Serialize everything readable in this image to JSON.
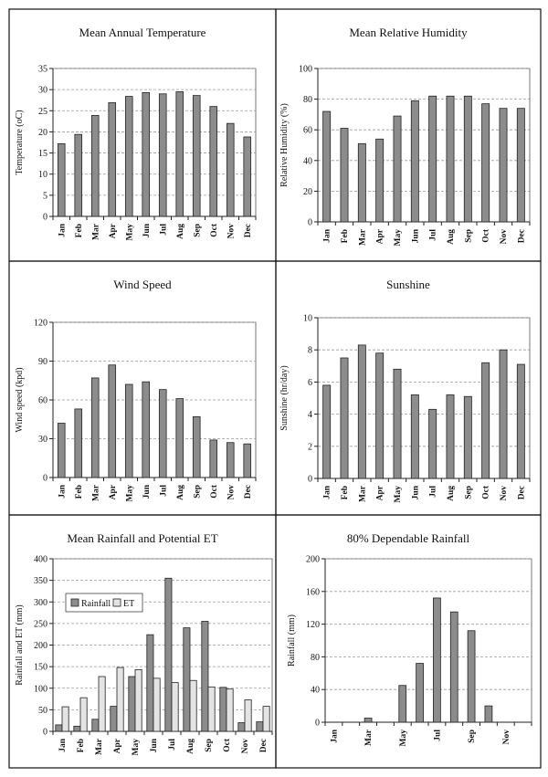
{
  "chart_data": [
    {
      "type": "bar",
      "title": "Mean Annual Temperature",
      "ylabel": "Temperature (oC)",
      "xlabel": "",
      "ylim": [
        0,
        35
      ],
      "yticks": [
        0,
        5,
        10,
        15,
        20,
        25,
        30,
        35
      ],
      "grid": true,
      "categories": [
        "Jan",
        "Feb",
        "Mar",
        "Apr",
        "May",
        "Jun",
        "Jul",
        "Aug",
        "Sep",
        "Oct",
        "Nov",
        "Dec"
      ],
      "values": [
        17.2,
        19.4,
        23.9,
        26.9,
        28.4,
        29.3,
        29.0,
        29.5,
        28.6,
        26.0,
        22.0,
        18.8
      ]
    },
    {
      "type": "bar",
      "title": "Mean Relative Humidity",
      "ylabel": "Relative Humidity (%)",
      "xlabel": "",
      "ylim": [
        0,
        100
      ],
      "yticks": [
        0,
        20,
        40,
        60,
        80,
        100
      ],
      "grid": true,
      "categories": [
        "Jan",
        "Feb",
        "Mar",
        "Apr",
        "May",
        "Jun",
        "Jul",
        "Aug",
        "Sep",
        "Oct",
        "Nov",
        "Dec"
      ],
      "values": [
        72,
        61,
        51,
        54,
        69,
        79,
        82,
        82,
        82,
        77,
        74,
        74
      ]
    },
    {
      "type": "bar",
      "title": "Wind Speed",
      "ylabel": "Wind speed (kpd)",
      "xlabel": "",
      "ylim": [
        0,
        120
      ],
      "yticks": [
        0,
        30,
        60,
        90,
        120
      ],
      "grid": true,
      "categories": [
        "Jan",
        "Feb",
        "Mar",
        "Apr",
        "May",
        "Jun",
        "Jul",
        "Aug",
        "Sep",
        "Oct",
        "Nov",
        "Dec"
      ],
      "values": [
        42,
        53,
        77,
        87,
        72,
        74,
        68,
        61,
        47,
        29,
        27,
        26
      ]
    },
    {
      "type": "bar",
      "title": "Sunshine",
      "ylabel": "Sunshine (hr/day)",
      "xlabel": "",
      "ylim": [
        0,
        10
      ],
      "yticks": [
        0,
        2,
        4,
        6,
        8,
        10
      ],
      "grid": true,
      "categories": [
        "Jan",
        "Feb",
        "Mar",
        "Apr",
        "May",
        "Jun",
        "Jul",
        "Aug",
        "Sep",
        "Oct",
        "Nov",
        "Dec"
      ],
      "values": [
        5.8,
        7.5,
        8.3,
        7.8,
        6.8,
        5.2,
        4.3,
        5.2,
        5.1,
        7.2,
        8.0,
        7.1
      ]
    },
    {
      "type": "bar",
      "title": "Mean Rainfall and Potential ET",
      "ylabel": "Rainfall and ET (mm)",
      "xlabel": "",
      "ylim": [
        0,
        400
      ],
      "yticks": [
        0,
        50,
        100,
        150,
        200,
        250,
        300,
        350,
        400
      ],
      "grid": true,
      "legend": "top-left",
      "categories": [
        "Jan",
        "Feb",
        "Mar",
        "Apr",
        "May",
        "Jun",
        "Jul",
        "Aug",
        "Sep",
        "Oct",
        "Nov",
        "Dec"
      ],
      "series": [
        {
          "name": "Rainfall",
          "values": [
            15,
            12,
            28,
            58,
            127,
            224,
            355,
            240,
            255,
            102,
            20,
            22
          ]
        },
        {
          "name": "ET",
          "values": [
            57,
            78,
            127,
            148,
            143,
            123,
            113,
            118,
            103,
            98,
            73,
            58
          ]
        }
      ]
    },
    {
      "type": "bar",
      "title": "80% Dependable Rainfall",
      "ylabel": "Rainfall (mm)",
      "xlabel": "",
      "ylim": [
        0,
        200
      ],
      "yticks": [
        0,
        40,
        80,
        120,
        160,
        200
      ],
      "grid": true,
      "categories": [
        "Jan",
        "Feb",
        "Mar",
        "Apr",
        "May",
        "Jun",
        "Jul",
        "Aug",
        "Sep",
        "Oct",
        "Nov",
        "Dec"
      ],
      "tick_labels_shown": [
        "Jan",
        "",
        "Mar",
        "",
        "May",
        "",
        "Jul",
        "",
        "Sep",
        "",
        "Nov",
        ""
      ],
      "values": [
        0,
        0,
        5,
        0,
        45,
        72,
        152,
        135,
        112,
        20,
        0,
        0
      ]
    }
  ]
}
